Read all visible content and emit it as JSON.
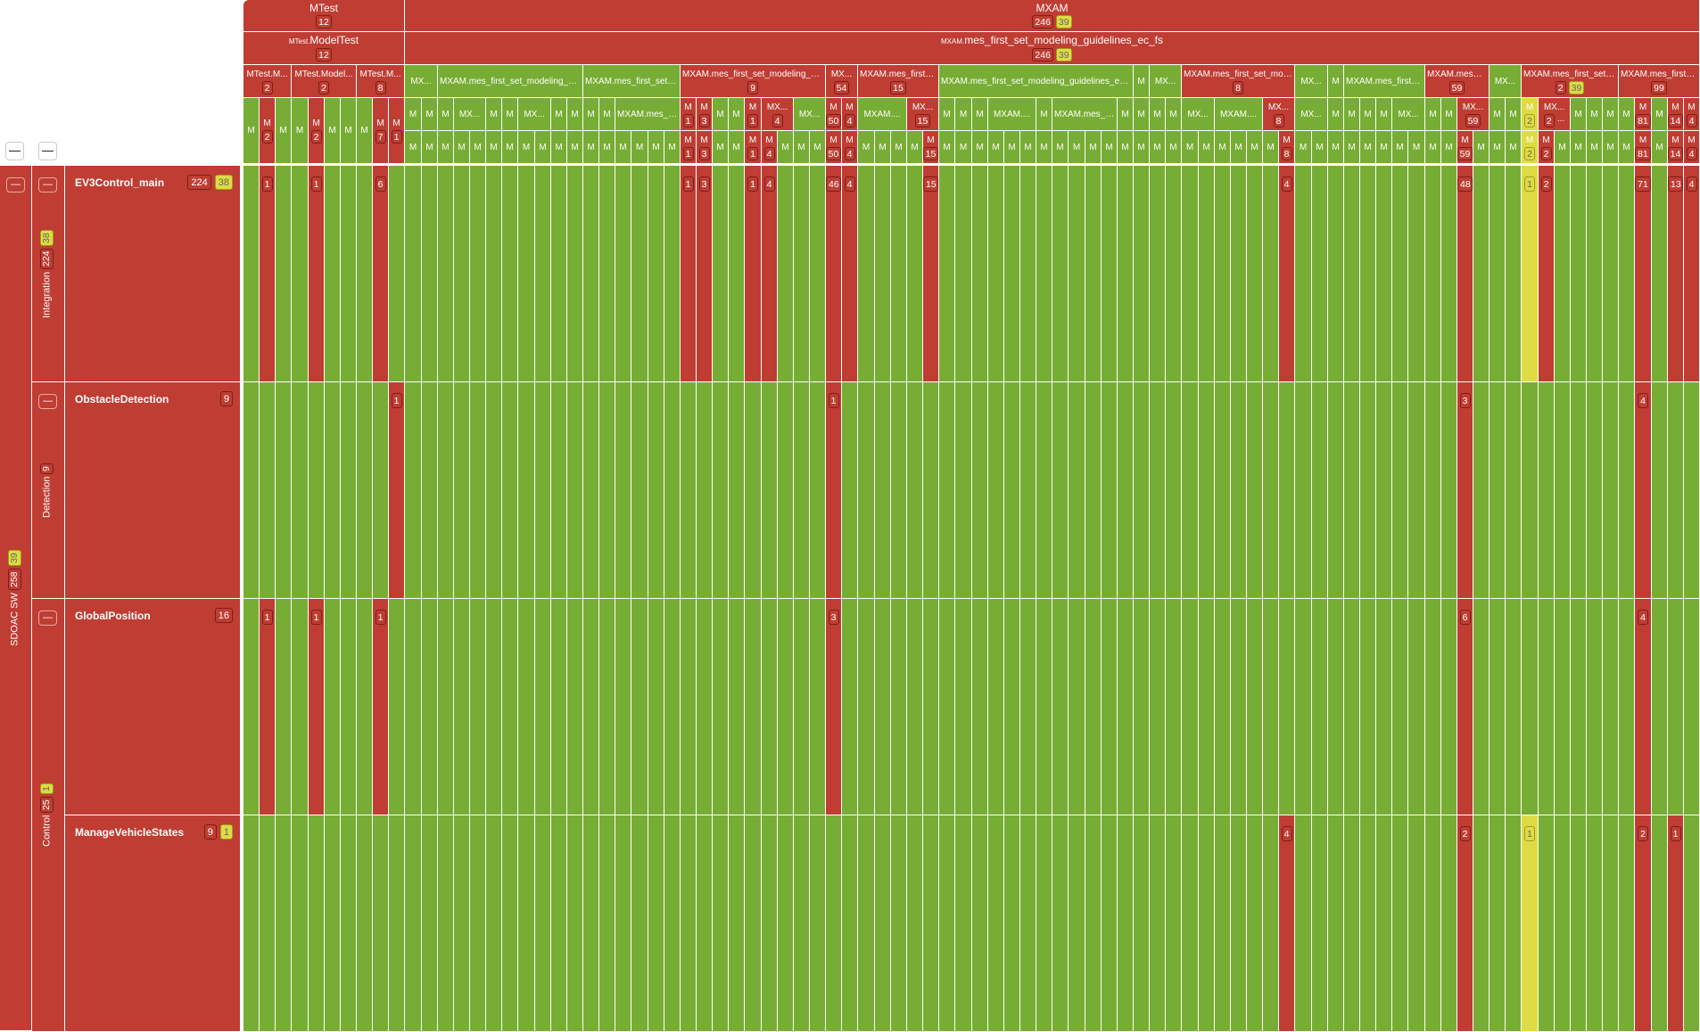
{
  "colors": {
    "fail": "#bf3d33",
    "pass": "#77ad34",
    "warn": "#dedb45"
  },
  "toolbar": {
    "collapse_all_1": "—",
    "collapse_all_2": "—"
  },
  "header": {
    "top": [
      {
        "label": "MTest",
        "counts": [
          "12"
        ],
        "warn": null,
        "status": "fail"
      },
      {
        "label": "MXAM",
        "counts": [
          "246"
        ],
        "warn": "39",
        "status": "fail"
      }
    ],
    "second": [
      {
        "prefix": "MTest.",
        "label": "ModelTest",
        "counts": [
          "12"
        ],
        "warn": null,
        "status": "fail"
      },
      {
        "prefix": "MXAM.",
        "label": "mes_first_set_modeling_guidelines_ec_fs",
        "counts": [
          "246"
        ],
        "warn": "39",
        "status": "fail"
      }
    ],
    "mtest_groups": [
      {
        "label": "MTest.M...",
        "status": "fail",
        "count": "2",
        "leaves": [
          {
            "label": "M",
            "status": "pass"
          },
          {
            "label": "M",
            "status": "fail",
            "count": "2"
          },
          {
            "label": "M",
            "status": "pass"
          }
        ]
      },
      {
        "label": "MTest.Model...",
        "status": "fail",
        "count": "2",
        "leaves": [
          {
            "label": "M",
            "status": "pass"
          },
          {
            "label": "M",
            "status": "fail",
            "count": "2"
          },
          {
            "label": "M",
            "status": "pass"
          },
          {
            "label": "M",
            "status": "pass"
          }
        ]
      },
      {
        "label": "MTest.M...",
        "status": "fail",
        "count": "8",
        "leaves": [
          {
            "label": "M",
            "status": "pass"
          },
          {
            "label": "M",
            "status": "fail",
            "count": "7"
          },
          {
            "label": "M",
            "status": "fail",
            "count": "1"
          }
        ]
      }
    ],
    "mxam_groups": [
      {
        "label": "MX...",
        "status": "pass",
        "sub": [
          {
            "label": "M",
            "span": 1,
            "status": "pass"
          },
          {
            "label": "M",
            "span": 1,
            "status": "pass"
          }
        ],
        "leaves": [
          "pass",
          "pass"
        ]
      },
      {
        "label": "MXAM.mes_first_set_modeling_guid...",
        "status": "pass",
        "sub": [
          {
            "label": "M",
            "span": 1,
            "status": "pass"
          },
          {
            "label": "MX...",
            "span": 2,
            "status": "pass"
          },
          {
            "label": "M",
            "span": 1,
            "status": "pass"
          },
          {
            "label": "M",
            "span": 1,
            "status": "pass"
          },
          {
            "label": "MX...",
            "span": 2,
            "status": "pass"
          },
          {
            "label": "M",
            "span": 1,
            "status": "pass"
          },
          {
            "label": "M",
            "span": 1,
            "status": "pass"
          }
        ],
        "leaves": [
          "pass",
          "pass",
          "pass",
          "pass",
          "pass",
          "pass",
          "pass",
          "pass",
          "pass"
        ]
      },
      {
        "label": "MXAM.mes_first_set_...",
        "status": "pass",
        "sub": [
          {
            "label": "M",
            "span": 1,
            "status": "pass"
          },
          {
            "label": "M",
            "span": 1,
            "status": "pass"
          },
          {
            "label": "MXAM.mes_f...",
            "span": 4,
            "status": "pass"
          }
        ],
        "leaves": [
          "pass",
          "pass",
          "pass",
          "pass",
          "pass",
          "pass"
        ]
      },
      {
        "label": "MXAM.mes_first_set_modeling_guid...",
        "status": "fail",
        "count": "9",
        "sub": [
          {
            "label": "M",
            "span": 1,
            "status": "fail",
            "count": "1"
          },
          {
            "label": "M",
            "span": 1,
            "status": "fail",
            "count": "3"
          },
          {
            "label": "M",
            "span": 1,
            "status": "pass"
          },
          {
            "label": "M",
            "span": 1,
            "status": "pass"
          },
          {
            "label": "M",
            "span": 1,
            "status": "fail",
            "count": "1"
          },
          {
            "label": "MX...",
            "span": 2,
            "status": "fail",
            "count": "4"
          },
          {
            "label": "MX...",
            "span": 2,
            "status": "pass"
          }
        ],
        "leaves": [
          "fail:1",
          "fail:3",
          "pass",
          "pass",
          "fail:1",
          "fail:4",
          "pass",
          "pass",
          "pass"
        ]
      },
      {
        "label": "MX...",
        "status": "fail",
        "count": "54",
        "sub": [
          {
            "label": "M",
            "span": 1,
            "status": "fail",
            "count": "50"
          },
          {
            "label": "M",
            "span": 1,
            "status": "fail",
            "count": "4"
          }
        ],
        "leaves": [
          "fail:50",
          "fail:4"
        ]
      },
      {
        "label": "MXAM.mes_first_...",
        "status": "fail",
        "count": "15",
        "sub": [
          {
            "label": "MXAM....",
            "span": 3,
            "status": "pass"
          },
          {
            "label": "MX...",
            "span": 2,
            "status": "fail",
            "count": "15"
          }
        ],
        "leaves": [
          "pass",
          "pass",
          "pass",
          "pass",
          "fail:15"
        ]
      },
      {
        "label": "MXAM.mes_first_set_modeling_guidelines_ec_fs....",
        "status": "pass",
        "sub": [
          {
            "label": "M",
            "span": 1,
            "status": "pass"
          },
          {
            "label": "M",
            "span": 1,
            "status": "pass"
          },
          {
            "label": "M",
            "span": 1,
            "status": "pass"
          },
          {
            "label": "MXAM....",
            "span": 3,
            "status": "pass"
          },
          {
            "label": "M",
            "span": 1,
            "status": "pass"
          },
          {
            "label": "MXAM.mes_f...",
            "span": 4,
            "status": "pass"
          },
          {
            "label": "M",
            "span": 1,
            "status": "pass"
          }
        ],
        "leaves": [
          "pass",
          "pass",
          "pass",
          "pass",
          "pass",
          "pass",
          "pass",
          "pass",
          "pass",
          "pass",
          "pass",
          "pass"
        ]
      },
      {
        "label": "M",
        "status": "pass",
        "sub": [
          {
            "label": "M",
            "span": 1,
            "status": "pass"
          }
        ],
        "leaves": [
          "pass"
        ]
      },
      {
        "label": "MX...",
        "status": "pass",
        "sub": [
          {
            "label": "M",
            "span": 1,
            "status": "pass"
          },
          {
            "label": "M",
            "span": 1,
            "status": "pass"
          }
        ],
        "leaves": [
          "pass",
          "pass"
        ]
      },
      {
        "label": "MXAM.mes_first_set_mode...",
        "status": "fail",
        "count": "8",
        "sub": [
          {
            "label": "MX...",
            "span": 2,
            "status": "pass"
          },
          {
            "label": "MXAM....",
            "span": 3,
            "status": "pass"
          },
          {
            "label": "MX...",
            "span": 2,
            "status": "fail",
            "count": "8"
          }
        ],
        "leaves": [
          "pass",
          "pass",
          "pass",
          "pass",
          "pass",
          "pass",
          "fail:8"
        ]
      },
      {
        "label": "MX...",
        "status": "pass",
        "sub": [
          {
            "label": "MX...",
            "span": 2,
            "status": "pass"
          }
        ],
        "leaves": [
          "pass",
          "pass"
        ]
      },
      {
        "label": "M",
        "status": "pass",
        "sub": [
          {
            "label": "M",
            "span": 1,
            "status": "pass"
          }
        ],
        "leaves": [
          "pass"
        ]
      },
      {
        "label": "MXAM.mes_first_...",
        "status": "pass",
        "sub": [
          {
            "label": "M",
            "span": 1,
            "status": "pass"
          },
          {
            "label": "M",
            "span": 1,
            "status": "pass"
          },
          {
            "label": "M",
            "span": 1,
            "status": "pass"
          },
          {
            "label": "MX...",
            "span": 2,
            "status": "pass"
          }
        ],
        "leaves": [
          "pass",
          "pass",
          "pass",
          "pass",
          "pass"
        ]
      },
      {
        "label": "MXAM.mes_f...",
        "status": "fail",
        "count": "59",
        "sub": [
          {
            "label": "M",
            "span": 1,
            "status": "pass"
          },
          {
            "label": "M",
            "span": 1,
            "status": "pass"
          },
          {
            "label": "MX...",
            "span": 2,
            "status": "fail",
            "count": "59"
          }
        ],
        "leaves": [
          "pass",
          "pass",
          "fail:59",
          "pass"
        ]
      },
      {
        "label": "MX...",
        "status": "pass",
        "sub": [
          {
            "label": "M",
            "span": 1,
            "status": "pass"
          },
          {
            "label": "M",
            "span": 1,
            "status": "pass"
          }
        ],
        "leaves": [
          "pass",
          "pass"
        ]
      },
      {
        "label": "MXAM.mes_first_set_...",
        "status": "fail",
        "count": "2",
        "warn": "39",
        "sub": [
          {
            "label": "M",
            "span": 1,
            "status": "warn",
            "count": "2"
          },
          {
            "label": "MX...",
            "span": 2,
            "status": "fail",
            "count": "2",
            "suffix": "..."
          },
          {
            "label": "M",
            "span": 1,
            "status": "pass"
          },
          {
            "label": "M",
            "span": 1,
            "status": "pass"
          },
          {
            "label": "M",
            "span": 1,
            "status": "pass"
          }
        ],
        "leaves": [
          "warn:2",
          "fail:2",
          "pass",
          "pass",
          "pass",
          "pass"
        ]
      },
      {
        "label": "MXAM.mes_first_...",
        "status": "fail",
        "count": "99",
        "sub": [
          {
            "label": "M",
            "span": 1,
            "status": "pass"
          },
          {
            "label": "M",
            "span": 1,
            "status": "fail",
            "count": "81"
          },
          {
            "label": "M",
            "span": 1,
            "status": "pass"
          },
          {
            "label": "M",
            "span": 1,
            "status": "fail",
            "count": "14"
          },
          {
            "label": "M",
            "span": 1,
            "status": "fail",
            "count": "4"
          }
        ],
        "leaves": [
          "pass",
          "fail:81",
          "pass",
          "fail:14",
          "fail:4"
        ]
      }
    ]
  },
  "tree": {
    "root": {
      "label": "SDOAC SW",
      "count": "258",
      "warn": "39"
    },
    "groups": [
      {
        "label": "Integration",
        "count": "224",
        "warn": "38",
        "rows": 1
      },
      {
        "label": "Detection",
        "count": "9",
        "warn": null,
        "rows": 1
      },
      {
        "label": "Control",
        "count": "25",
        "warn": "1",
        "rows": 2
      }
    ],
    "rows": [
      {
        "label": "EV3Control_main",
        "count": "224",
        "warn": "38",
        "cells": [
          {
            "col": 1,
            "status": "fail",
            "count": "1"
          },
          {
            "col": 4,
            "status": "fail",
            "count": "1"
          },
          {
            "col": 8,
            "status": "fail",
            "count": "6"
          },
          {
            "col": 27,
            "status": "fail",
            "count": "1"
          },
          {
            "col": 28,
            "status": "fail",
            "count": "3"
          },
          {
            "col": 31,
            "status": "fail",
            "count": "1"
          },
          {
            "col": 32,
            "status": "fail",
            "count": "4"
          },
          {
            "col": 36,
            "status": "fail",
            "count": "46"
          },
          {
            "col": 37,
            "status": "fail",
            "count": "4"
          },
          {
            "col": 42,
            "status": "fail",
            "count": "15"
          },
          {
            "col": 64,
            "status": "fail",
            "count": "4"
          },
          {
            "col": 75,
            "status": "fail",
            "count": "48"
          },
          {
            "col": 79,
            "status": "warn",
            "count": "1"
          },
          {
            "col": 80,
            "status": "fail",
            "count": "2"
          },
          {
            "col": 86,
            "status": "fail",
            "count": "71"
          },
          {
            "col": 88,
            "status": "fail",
            "count": "13"
          },
          {
            "col": 89,
            "status": "fail",
            "count": "4"
          }
        ]
      },
      {
        "label": "ObstacleDetection",
        "count": "9",
        "warn": null,
        "cells": [
          {
            "col": 9,
            "status": "fail",
            "count": "1"
          },
          {
            "col": 36,
            "status": "fail",
            "count": "1"
          },
          {
            "col": 75,
            "status": "fail",
            "count": "3"
          },
          {
            "col": 86,
            "status": "fail",
            "count": "4"
          }
        ]
      },
      {
        "label": "GlobalPosition",
        "count": "16",
        "warn": null,
        "cells": [
          {
            "col": 1,
            "status": "fail",
            "count": "1"
          },
          {
            "col": 4,
            "status": "fail",
            "count": "1"
          },
          {
            "col": 8,
            "status": "fail",
            "count": "1"
          },
          {
            "col": 36,
            "status": "fail",
            "count": "3"
          },
          {
            "col": 75,
            "status": "fail",
            "count": "6"
          },
          {
            "col": 86,
            "status": "fail",
            "count": "4"
          }
        ]
      },
      {
        "label": "ManageVehicleStates",
        "count": "9",
        "warn": "1",
        "cells": [
          {
            "col": 64,
            "status": "fail",
            "count": "4"
          },
          {
            "col": 75,
            "status": "fail",
            "count": "2"
          },
          {
            "col": 79,
            "status": "warn",
            "count": "1"
          },
          {
            "col": 86,
            "status": "fail",
            "count": "2"
          },
          {
            "col": 88,
            "status": "fail",
            "count": "1"
          }
        ]
      }
    ]
  }
}
